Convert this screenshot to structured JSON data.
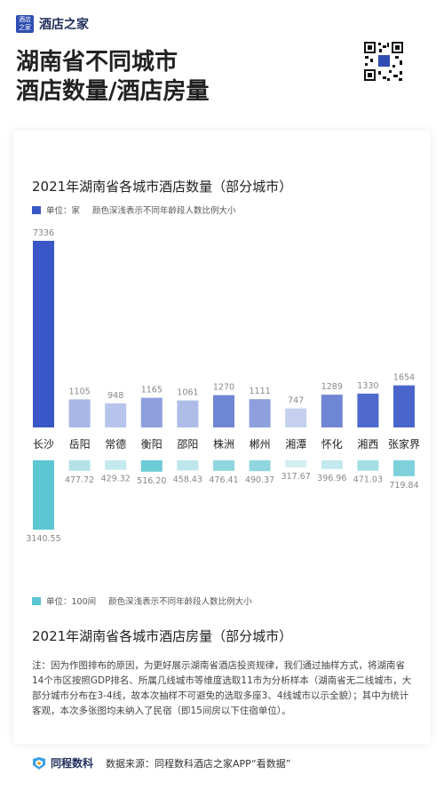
{
  "header": {
    "logo_mark": "酒店之家",
    "logo_text": "酒店之家",
    "title_line1": "湖南省不同城市",
    "title_line2": "酒店数量/酒店房量"
  },
  "chart_top": {
    "title": "2021年湖南省各城市酒店数量（部分城市）",
    "legend_unit": "单位：家",
    "legend_note": "颜色深浅表示不同年龄段人数比例大小"
  },
  "chart_bottom": {
    "title": "2021年湖南省各城市酒店房量（部分城市）",
    "legend_unit": "单位：100间",
    "legend_note": "颜色深浅表示不同年龄段人数比例大小"
  },
  "chart_data": [
    {
      "type": "bar",
      "title": "2021年湖南省各城市酒店数量（部分城市）",
      "unit": "单位：家",
      "categories": [
        "长沙",
        "岳阳",
        "常德",
        "衡阳",
        "邵阳",
        "株洲",
        "郴州",
        "湘潭",
        "怀化",
        "湘西",
        "张家界"
      ],
      "values": [
        7336,
        1105,
        948,
        1165,
        1061,
        1270,
        1111,
        747,
        1289,
        1330,
        1654
      ],
      "colors": [
        "#3a57c8",
        "#a8b7e6",
        "#b7c4ec",
        "#8d9fdc",
        "#aebde8",
        "#6f86d4",
        "#8d9fdc",
        "#c5d0ef",
        "#6f86d4",
        "#4f69cc",
        "#4a65cc"
      ]
    },
    {
      "type": "bar",
      "title": "2021年湖南省各城市酒店房量（部分城市）",
      "unit": "单位：100间",
      "categories": [
        "长沙",
        "岳阳",
        "常德",
        "衡阳",
        "邵阳",
        "株洲",
        "郴州",
        "湘潭",
        "怀化",
        "湘西",
        "张家界"
      ],
      "values": [
        3140.55,
        477.72,
        429.32,
        516.2,
        458.43,
        476.41,
        490.37,
        317.67,
        396.96,
        471.03,
        719.84
      ],
      "colors": [
        "#5cc6d3",
        "#b3e3e9",
        "#c2e9ee",
        "#6ccbd6",
        "#bce6ec",
        "#8fd6df",
        "#8fd6df",
        "#d2eff2",
        "#c2e9ee",
        "#a3dee5",
        "#7ed1db"
      ]
    }
  ],
  "footnote": "注：因为作图排布的原因，为更好展示湖南省酒店投资规律，我们通过抽样方式，将湖南省14个市区按照GDP排名、所属几线城市等维度选取11市为分析样本（湖南省无二线城市，大部分城市分布在3-4线，故本次抽样不可避免的选取多座3、4线城市以示全貌）；其中为统计客观，本次多张图均未纳入了民宿（即15间房以下住宿单位）。",
  "footer": {
    "brand": "同程数科",
    "source": "数据来源：同程数科酒店之家APP“看数据”"
  }
}
